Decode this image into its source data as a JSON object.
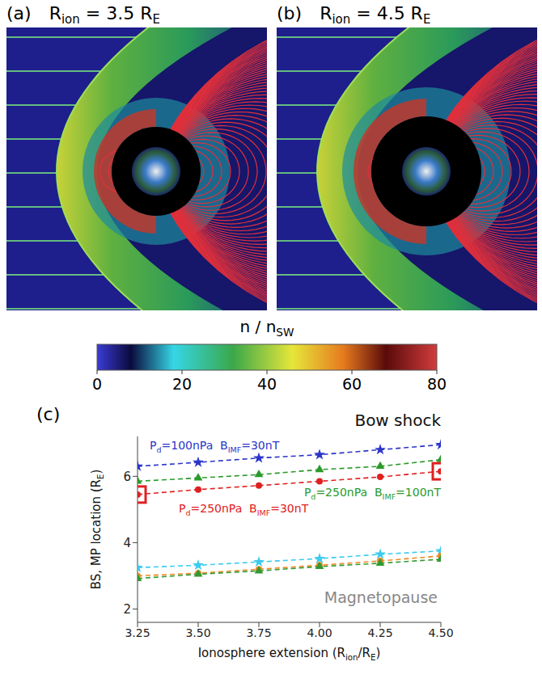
{
  "panels": [
    {
      "letter": "(a)",
      "title": [
        "R",
        {
          "sub": "ion"
        },
        " = 3.5 R",
        {
          "sub": "E"
        }
      ]
    },
    {
      "letter": "(b)",
      "title": [
        "R",
        {
          "sub": "ion"
        },
        " = 4.5 R",
        {
          "sub": "E"
        }
      ]
    }
  ],
  "colorbar": {
    "label": [
      "n / n",
      {
        "sub": "SW"
      }
    ],
    "range": [
      0,
      80
    ],
    "ticks": [
      0,
      20,
      40,
      60,
      80
    ],
    "stops": [
      [
        0,
        "#3b3bd6"
      ],
      [
        8,
        "#0a0a3c"
      ],
      [
        18,
        "#35d6e6"
      ],
      [
        32,
        "#3aa84a"
      ],
      [
        46,
        "#e6e63a"
      ],
      [
        58,
        "#e67a1e"
      ],
      [
        68,
        "#5a0a0a"
      ],
      [
        80,
        "#d23c3c"
      ]
    ]
  },
  "chart_data": {
    "letter": "(c)",
    "type": "line",
    "title": "Bow shock",
    "annotations": [
      "Magnetopause"
    ],
    "xlabel": [
      "Ionosphere extension (R",
      {
        "sub": "ion"
      },
      "/R",
      {
        "sub": "E"
      },
      ")"
    ],
    "ylabel": [
      "BS, MP location (R",
      {
        "sub": "E"
      },
      ")"
    ],
    "x": [
      3.25,
      3.5,
      3.75,
      4.0,
      4.25,
      4.5
    ],
    "xlim": [
      3.25,
      4.5
    ],
    "xticks": [
      3.25,
      {
        "value": 3.5,
        "label": "3.50"
      },
      3.75,
      {
        "value": 4,
        "label": "4.00"
      },
      4.25,
      {
        "value": 4.5,
        "label": "4.50"
      }
    ],
    "ylim": [
      1.6,
      7.2
    ],
    "yticks": [
      2,
      4,
      6
    ],
    "line_style": "dashed",
    "series": [
      {
        "name": [
          "P",
          {
            "sub": "d"
          },
          "=100nPa  B",
          {
            "sub": "IMF"
          },
          "=30nT"
        ],
        "color": "#2b35c8",
        "marker": "star",
        "values": [
          6.3,
          6.42,
          6.55,
          6.65,
          6.8,
          6.95
        ]
      },
      {
        "name": [
          "P",
          {
            "sub": "d"
          },
          "=250nPa  B",
          {
            "sub": "IMF"
          },
          "=100nT"
        ],
        "color": "#2a9a2a",
        "marker": "triangle",
        "values": [
          5.85,
          5.95,
          6.05,
          6.2,
          6.3,
          6.5
        ]
      },
      {
        "name": [
          "P",
          {
            "sub": "d"
          },
          "=250nPa  B",
          {
            "sub": "IMF"
          },
          "=30nT"
        ],
        "color": "#e02020",
        "marker": "circle",
        "values": [
          5.45,
          5.6,
          5.72,
          5.85,
          5.98,
          6.15
        ],
        "highlight_x": [
          3.25,
          4.5
        ]
      },
      {
        "color": "#3ccbee",
        "marker": "star",
        "values": [
          3.25,
          3.32,
          3.42,
          3.52,
          3.65,
          3.75
        ]
      },
      {
        "color": "#ee8a22",
        "marker": "circle",
        "values": [
          3.0,
          3.08,
          3.2,
          3.32,
          3.45,
          3.6
        ]
      },
      {
        "color": "#339933",
        "marker": "triangle",
        "values": [
          2.92,
          3.05,
          3.15,
          3.28,
          3.38,
          3.5
        ]
      }
    ]
  }
}
